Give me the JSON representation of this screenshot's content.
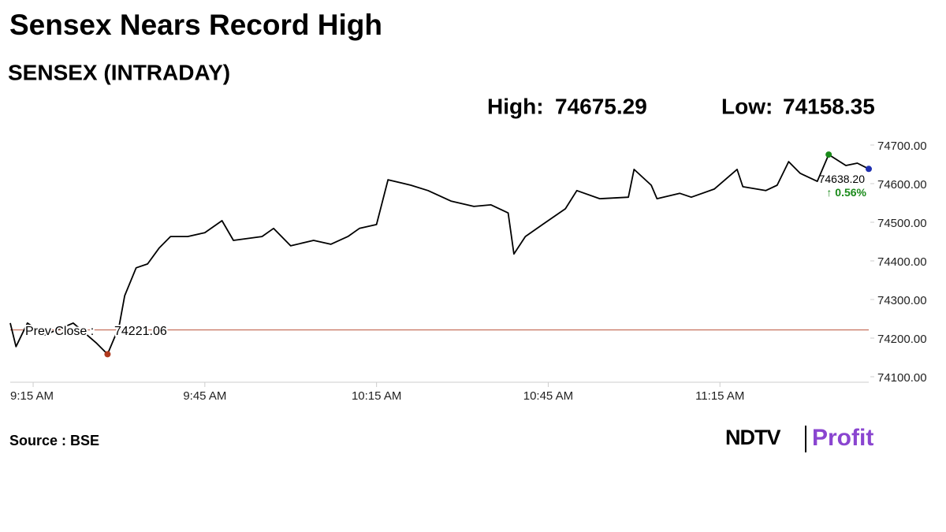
{
  "chart_data": {
    "type": "line",
    "title": "Sensex Nears Record High",
    "subtitle": "SENSEX (INTRADAY)",
    "high": {
      "label": "High:",
      "value": 74675.29,
      "color": "#1a8a1a"
    },
    "low": {
      "label": "Low:",
      "value": 74158.35,
      "color": "#b03a1e"
    },
    "prev_close": {
      "label": "Prev Close :",
      "value": 74221.06,
      "color": "#b03a1e"
    },
    "last": {
      "value": 74638.2,
      "value_label": "74638.20",
      "color": "#1f2fb0"
    },
    "change": {
      "value": 0.56,
      "label": "↑ 0.56%",
      "color": "#1a8a1a"
    },
    "x": [
      "9:11 AM",
      "9:12 AM",
      "9:14 AM",
      "9:17 AM",
      "9:22 AM",
      "9:26 AM",
      "9:28 AM",
      "9:30 AM",
      "9:31 AM",
      "9:33 AM",
      "9:35 AM",
      "9:37 AM",
      "9:39 AM",
      "9:42 AM",
      "9:45 AM",
      "9:48 AM",
      "9:50 AM",
      "9:55 AM",
      "9:57 AM",
      "10:00 AM",
      "10:04 AM",
      "10:07 AM",
      "10:10 AM",
      "10:12 AM",
      "10:15 AM",
      "10:17 AM",
      "10:21 AM",
      "10:24 AM",
      "10:28 AM",
      "10:32 AM",
      "10:35 AM",
      "10:38 AM",
      "10:39 AM",
      "10:41 AM",
      "10:44 AM",
      "10:48 AM",
      "10:50 AM",
      "10:54 AM",
      "10:59 AM",
      "11:00 AM",
      "11:03 AM",
      "11:04 AM",
      "11:08 AM",
      "11:10 AM",
      "11:14 AM",
      "11:18 AM",
      "11:19 AM",
      "11:23 AM",
      "11:25 AM",
      "11:27 AM",
      "11:29 AM",
      "11:32 AM",
      "11:34 AM",
      "11:37 AM",
      "11:39 AM",
      "11:41 AM"
    ],
    "series": [
      {
        "name": "SENSEX",
        "color": "#000000",
        "values": [
          74239,
          74178,
          74239,
          74208,
          74239,
          74188,
          74158.35,
          74229,
          74310,
          74382,
          74392,
          74433,
          74463,
          74463,
          74473,
          74504,
          74453,
          74463,
          74484,
          74439,
          74453,
          74443,
          74463,
          74484,
          74494,
          74610,
          74596,
          74582,
          74555,
          74541,
          74545,
          74524,
          74418,
          74463,
          74494,
          74535,
          74582,
          74561,
          74565,
          74637,
          74596,
          74561,
          74575,
          74565,
          74586,
          74637,
          74592,
          74582,
          74596,
          74657,
          74627,
          74606,
          74675.29,
          74647,
          74653,
          74638.2
        ]
      }
    ],
    "xlim": [
      "9:11 AM",
      "11:41 AM"
    ],
    "xticks": [
      "9:15 AM",
      "9:45 AM",
      "10:15 AM",
      "10:45 AM",
      "11:15 AM"
    ],
    "ylim": [
      74100,
      74700
    ],
    "yticks": [
      {
        "value": 74100,
        "label": "74100.00"
      },
      {
        "value": 74200,
        "label": "74200.00"
      },
      {
        "value": 74300,
        "label": "74300.00"
      },
      {
        "value": 74400,
        "label": "74400.00"
      },
      {
        "value": 74500,
        "label": "74500.00"
      },
      {
        "value": 74600,
        "label": "74600.00"
      },
      {
        "value": 74700,
        "label": "74700.00"
      }
    ],
    "source": "Source : BSE",
    "logo": {
      "brand": "NDTV",
      "product": "Profit"
    }
  }
}
